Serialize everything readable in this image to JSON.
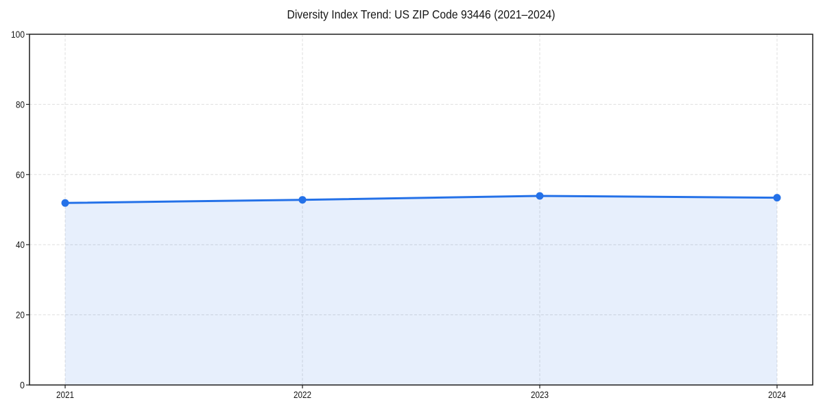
{
  "chart_data": {
    "type": "line",
    "title": "Diversity Index Trend: US ZIP Code 93446 (2021–2024)",
    "categories": [
      "2021",
      "2022",
      "2023",
      "2024"
    ],
    "series": [
      {
        "name": "Diversity Index",
        "values": [
          51.9,
          52.8,
          53.9,
          53.4
        ]
      }
    ],
    "xlabel": "",
    "ylabel": "",
    "ylim": [
      0,
      100
    ],
    "yticks": [
      0,
      20,
      40,
      60,
      80,
      100
    ],
    "grid": true,
    "grid_style": "dashed",
    "legend": "none",
    "area_fill": true,
    "marker": "circle",
    "colors": {
      "line": "#2471e8",
      "marker": "#2471e8",
      "area": "rgba(36, 106, 230, 0.11)",
      "grid": "#dedede",
      "spine": "#1c1c1c",
      "text": "#141414",
      "background": "#ffffff"
    }
  }
}
